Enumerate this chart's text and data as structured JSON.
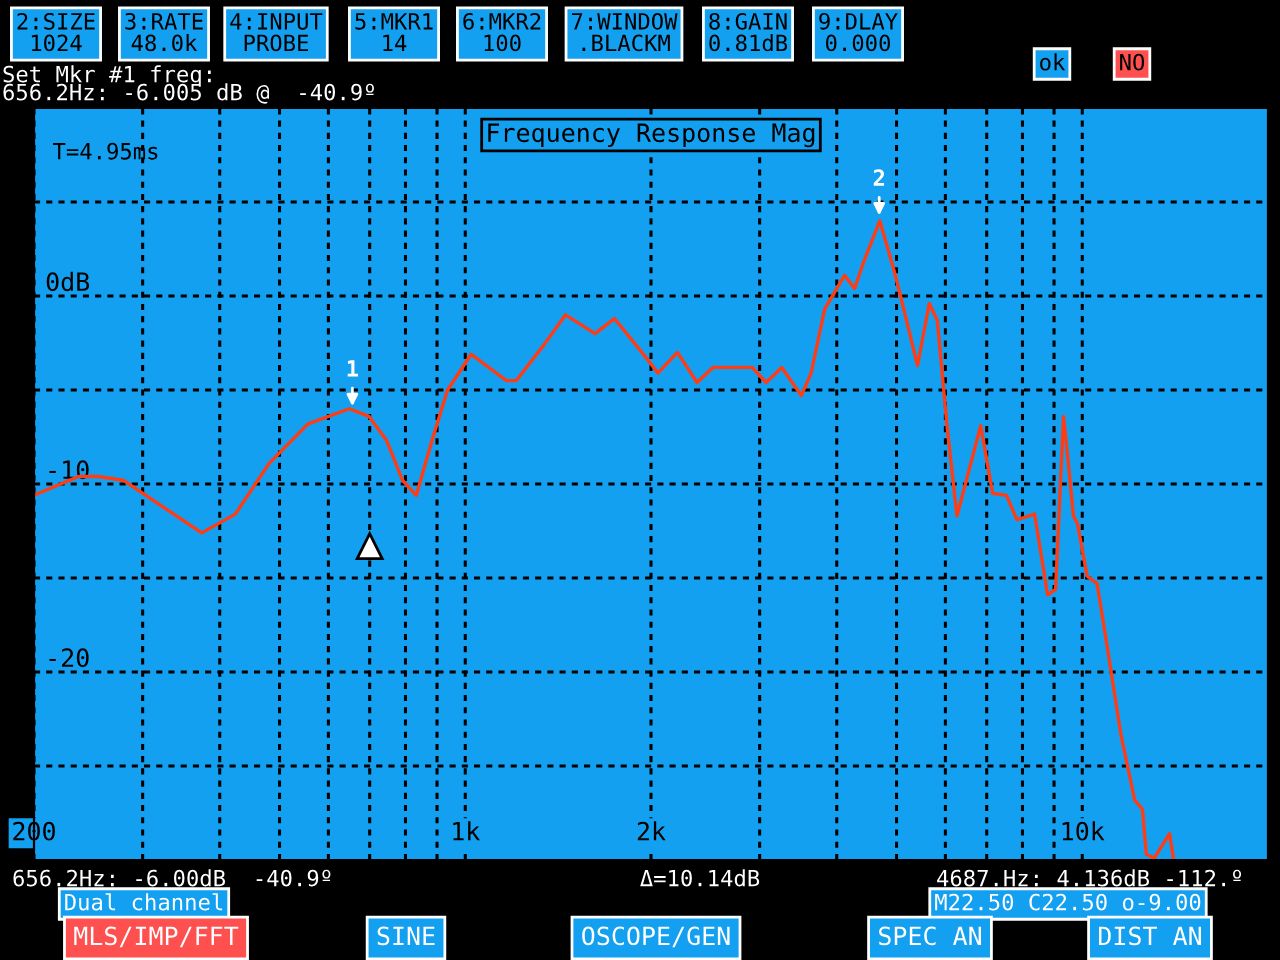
{
  "chart_data": {
    "type": "line",
    "title": "Frequency Response Mag",
    "x": [
      200,
      236,
      254,
      279,
      374,
      424,
      481,
      556,
      649,
      698,
      746,
      791,
      833,
      883,
      936,
      1022,
      1166,
      1210,
      1341,
      1454,
      1623,
      1745,
      1977,
      2052,
      2207,
      2375,
      2520,
      2918,
      3073,
      3258,
      3505,
      3635,
      3824,
      4118,
      4275,
      4433,
      4697,
      4950,
      5137,
      5407,
      5650,
      5822,
      6036,
      6265,
      6845,
      7158,
      7537,
      7832,
      8370,
      8788,
      9053,
      9323,
      9460,
      9676,
      9822,
      10184,
      10569,
      10970,
      11547,
      12157,
      12517,
      12700,
      13080,
      13850,
      14050
    ],
    "series": [
      {
        "color": "#ff3c14",
        "values": [
          -10.6,
          -9.6,
          -9.6,
          -9.8,
          -12.6,
          -11.6,
          -8.9,
          -6.8,
          -6.0,
          -6.4,
          -7.7,
          -9.8,
          -10.6,
          -7.7,
          -5.0,
          -3.1,
          -4.5,
          -4.5,
          -2.6,
          -1.0,
          -2.0,
          -1.2,
          -3.4,
          -4.1,
          -3.0,
          -4.6,
          -3.8,
          -3.8,
          -4.6,
          -3.8,
          -5.3,
          -4.1,
          -0.7,
          1.1,
          0.4,
          1.9,
          4.0,
          1.4,
          -0.7,
          -3.7,
          -0.4,
          -1.3,
          -6.9,
          -11.7,
          -6.9,
          -10.5,
          -10.6,
          -11.9,
          -11.6,
          -15.9,
          -15.6,
          -6.4,
          -8.4,
          -11.7,
          -12.1,
          -14.9,
          -15.3,
          -18.6,
          -23.3,
          -26.8,
          -27.3,
          -29.7,
          -29.9,
          -28.6,
          -29.9
        ]
      }
    ],
    "log": "x",
    "xlim": [
      200,
      20000
    ],
    "xticks": [
      {
        "value": 200,
        "label": "200"
      },
      {
        "value": 300,
        "label": null
      },
      {
        "value": 400,
        "label": null
      },
      {
        "value": 500,
        "label": null
      },
      {
        "value": 600,
        "label": null
      },
      {
        "value": 700,
        "label": null
      },
      {
        "value": 800,
        "label": null
      },
      {
        "value": 900,
        "label": null
      },
      {
        "value": 1000,
        "label": "1k"
      },
      {
        "value": 2000,
        "label": "2k"
      },
      {
        "value": 3000,
        "label": null
      },
      {
        "value": 4000,
        "label": null
      },
      {
        "value": 5000,
        "label": null
      },
      {
        "value": 6000,
        "label": null
      },
      {
        "value": 7000,
        "label": null
      },
      {
        "value": 8000,
        "label": null
      },
      {
        "value": 9000,
        "label": null
      },
      {
        "value": 10000,
        "label": "10k"
      }
    ],
    "ylim": [
      -30,
      10
    ],
    "yticks": [
      {
        "value": 5,
        "label": null
      },
      {
        "value": 0,
        "label": "0dB"
      },
      {
        "value": -5,
        "label": null
      },
      {
        "value": -10,
        "label": "-10"
      },
      {
        "value": -15,
        "label": null
      },
      {
        "value": -20,
        "label": "-20"
      },
      {
        "value": -25,
        "label": null
      }
    ],
    "grid": true,
    "line_style": "solid",
    "marker": "none",
    "annotations": [
      {
        "text": "1",
        "x": 656.2,
        "y": -6.005
      },
      {
        "text": "2",
        "x": 4687,
        "y": 4.136
      },
      "T=4.95ms",
      "2:SIZE\n1024",
      "3:RATE\n48.0k",
      "4:INPUT\nPROBE",
      "5:MKR1\n14",
      "6:MKR2\n100",
      "7:WINDOW\n.BLACKM",
      "8:GAIN\n0.81dB",
      "9:DLAY\n0.000",
      "Set Mkr #1 freq:",
      "656.2Hz: -6.005 dB @  -40.9º",
      "ok",
      "NO",
      "656.2Hz: -6.00dB  -40.9º",
      "Δ=10.14dB",
      "4687.Hz: 4.136dB -112.º",
      "Dual channel",
      "M22.50 C22.50 o-9.00",
      "MLS/IMP/FFT",
      "SINE",
      "OSCOPE/GEN",
      "SPEC AN",
      "DIST AN"
    ]
  }
}
